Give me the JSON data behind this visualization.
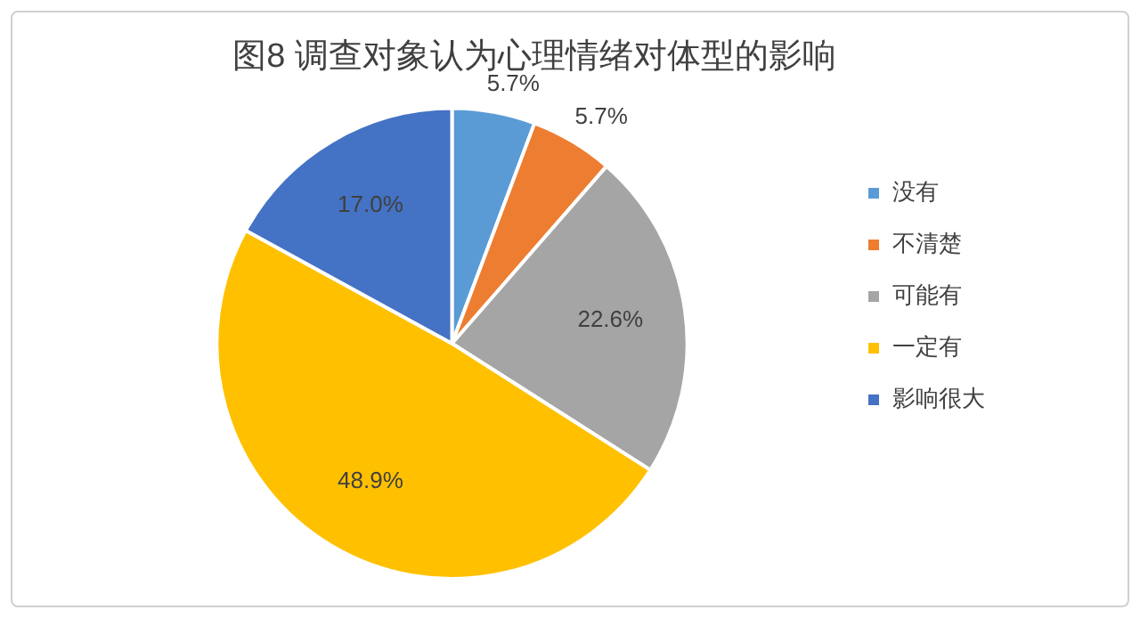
{
  "chart_data": {
    "type": "pie",
    "title": "图8 调查对象认为心理情绪对体型的影响",
    "categories": [
      "没有",
      "不清楚",
      "可能有",
      "一定有",
      "影响很大"
    ],
    "values": [
      5.7,
      5.7,
      22.6,
      48.9,
      17.0
    ],
    "colors": [
      "#5b9bd5",
      "#ed7d31",
      "#a5a5a5",
      "#ffc000",
      "#4472c4"
    ],
    "value_labels": [
      "5.7%",
      "5.7%",
      "22.6%",
      "48.9%",
      "17.0%"
    ],
    "legend": "right"
  }
}
